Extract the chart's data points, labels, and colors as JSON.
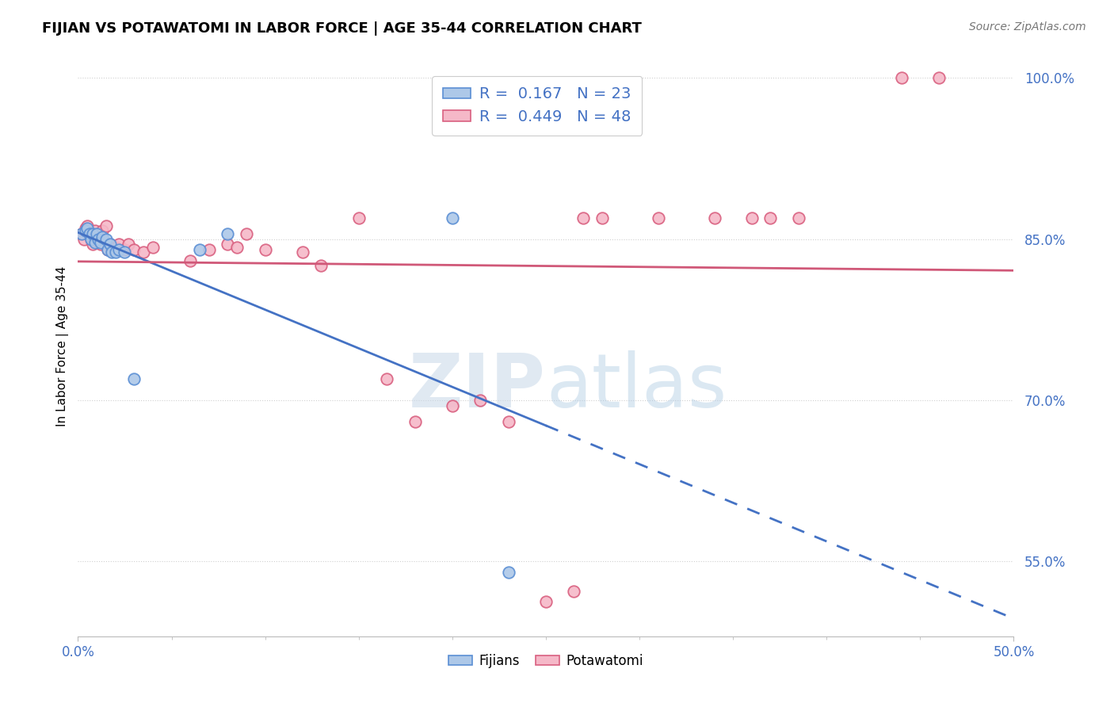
{
  "title": "FIJIAN VS POTAWATOMI IN LABOR FORCE | AGE 35-44 CORRELATION CHART",
  "source": "Source: ZipAtlas.com",
  "ylabel": "In Labor Force | Age 35-44",
  "xlim": [
    0.0,
    0.5
  ],
  "ylim": [
    0.48,
    1.02
  ],
  "legend_r_fijian": "0.167",
  "legend_n_fijian": "23",
  "legend_r_potawatomi": "0.449",
  "legend_n_potawatomi": "48",
  "fijian_face_color": "#adc8e8",
  "fijian_edge_color": "#5b8fd4",
  "potawatomi_face_color": "#f5b8c8",
  "potawatomi_edge_color": "#d96080",
  "fijian_line_color": "#4472c4",
  "potawatomi_line_color": "#d05878",
  "fijian_x": [
    0.002,
    0.004,
    0.005,
    0.006,
    0.007,
    0.008,
    0.009,
    0.01,
    0.011,
    0.012,
    0.013,
    0.015,
    0.016,
    0.017,
    0.018,
    0.02,
    0.022,
    0.025,
    0.03,
    0.065,
    0.08,
    0.2,
    0.23
  ],
  "fijian_y": [
    0.855,
    0.858,
    0.86,
    0.855,
    0.85,
    0.855,
    0.847,
    0.855,
    0.85,
    0.847,
    0.852,
    0.85,
    0.84,
    0.845,
    0.838,
    0.838,
    0.84,
    0.838,
    0.72,
    0.84,
    0.855,
    0.87,
    0.54
  ],
  "potawatomi_x": [
    0.002,
    0.003,
    0.004,
    0.005,
    0.006,
    0.007,
    0.008,
    0.009,
    0.01,
    0.011,
    0.012,
    0.013,
    0.015,
    0.016,
    0.017,
    0.018,
    0.02,
    0.022,
    0.025,
    0.027,
    0.03,
    0.035,
    0.04,
    0.06,
    0.07,
    0.08,
    0.085,
    0.09,
    0.1,
    0.12,
    0.13,
    0.15,
    0.165,
    0.18,
    0.2,
    0.215,
    0.23,
    0.25,
    0.265,
    0.27,
    0.28,
    0.31,
    0.34,
    0.36,
    0.37,
    0.385,
    0.44,
    0.46
  ],
  "potawatomi_y": [
    0.855,
    0.85,
    0.86,
    0.862,
    0.855,
    0.85,
    0.845,
    0.858,
    0.848,
    0.85,
    0.845,
    0.858,
    0.862,
    0.84,
    0.845,
    0.84,
    0.842,
    0.845,
    0.84,
    0.845,
    0.84,
    0.838,
    0.842,
    0.83,
    0.84,
    0.845,
    0.842,
    0.855,
    0.84,
    0.838,
    0.825,
    0.87,
    0.72,
    0.68,
    0.695,
    0.7,
    0.68,
    0.512,
    0.522,
    0.87,
    0.87,
    0.87,
    0.87,
    0.87,
    0.87,
    0.87,
    1.0,
    1.0
  ],
  "background_color": "#ffffff",
  "grid_color": "#d0d0d0",
  "watermark_zip": "ZIP",
  "watermark_atlas": "atlas",
  "marker_size": 110,
  "fijian_solid_xlim": 0.25,
  "y_ticks": [
    0.55,
    0.7,
    0.85,
    1.0
  ],
  "y_tick_labels": [
    "55.0%",
    "70.0%",
    "85.0%",
    "100.0%"
  ]
}
